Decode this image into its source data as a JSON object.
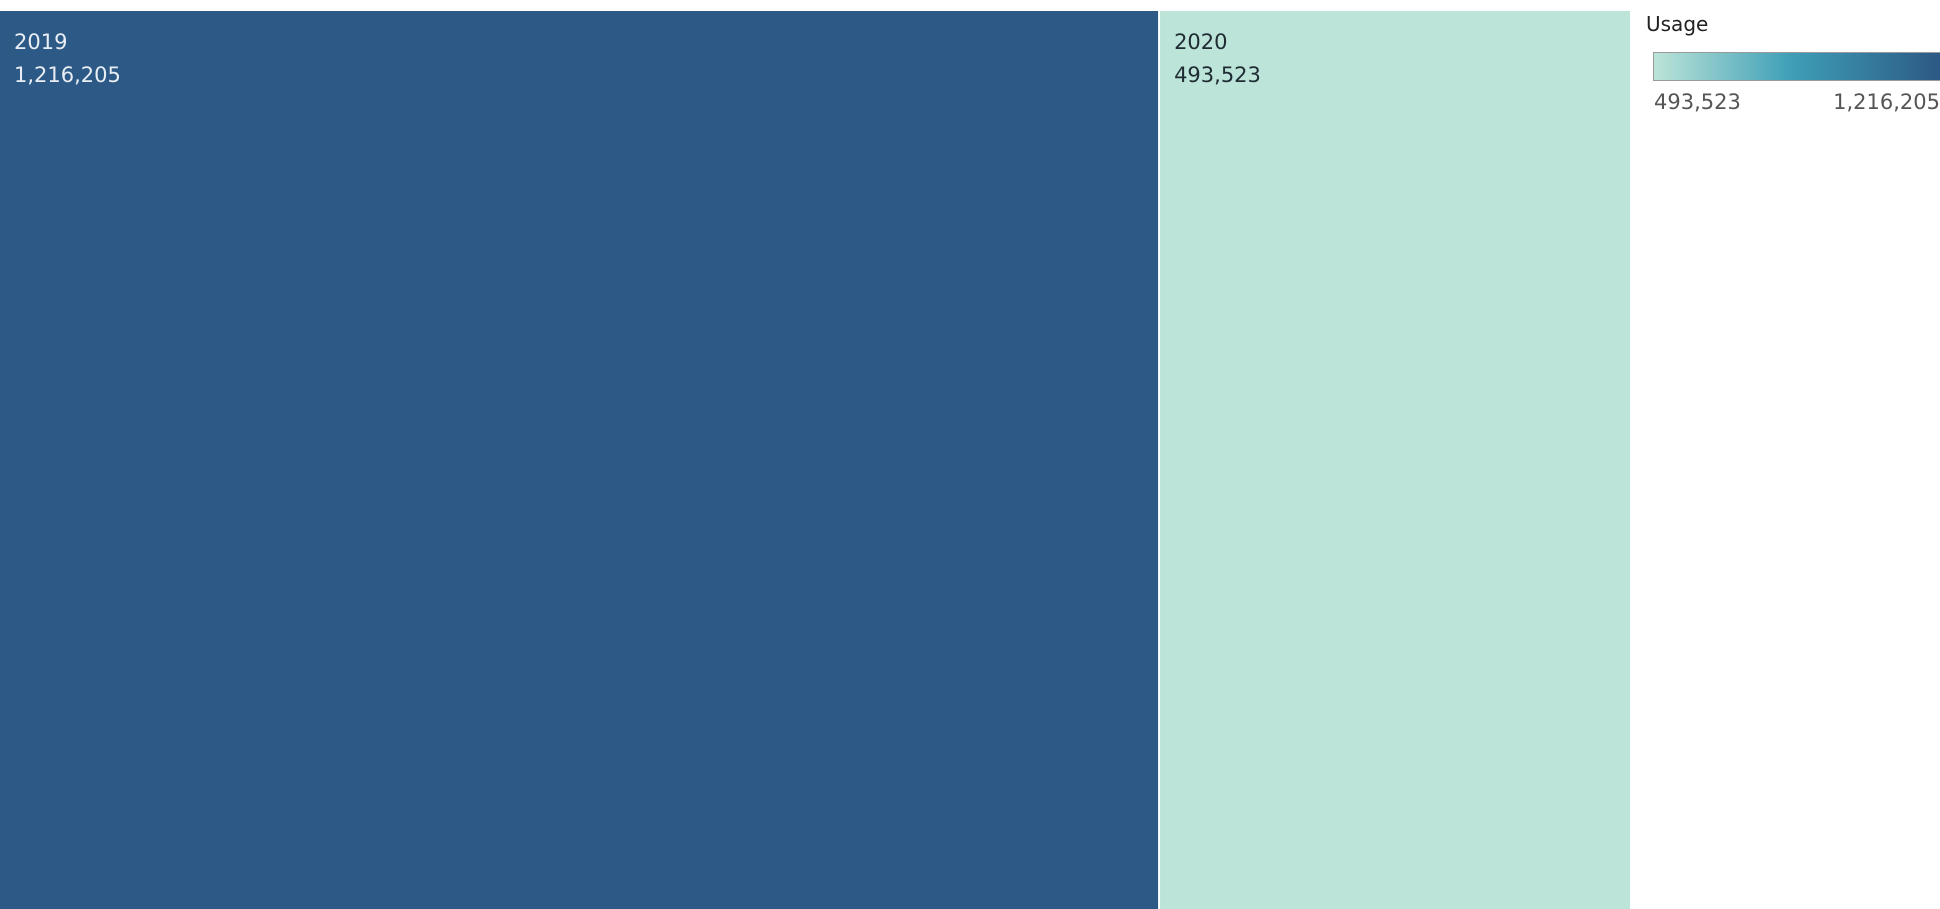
{
  "chart_data": {
    "type": "treemap",
    "measure": "Usage",
    "categories": [
      "2019",
      "2020"
    ],
    "values": [
      1216205,
      493523
    ],
    "labels": [
      {
        "category": "2019",
        "value_text": "1,216,205"
      },
      {
        "category": "2020",
        "value_text": "493,523"
      }
    ],
    "colors": {
      "low": "#bce4d8",
      "mid": "#3e9fb7",
      "high": "#2c5985",
      "label_on_dark": "#e8eef4",
      "label_on_light": "#1e2b33",
      "separator": "#ffffff"
    }
  },
  "legend": {
    "title": "Usage",
    "min_label": "493,523",
    "max_label": "1,216,205",
    "placement": "top-right"
  }
}
